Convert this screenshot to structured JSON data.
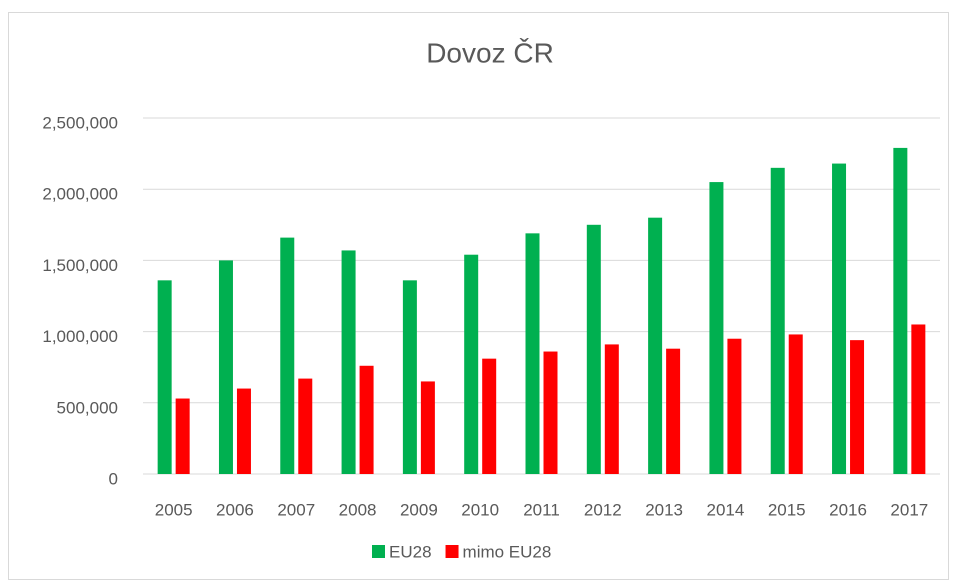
{
  "chart_data": {
    "type": "bar",
    "title": "Dovoz ČR",
    "categories": [
      "2005",
      "2006",
      "2007",
      "2008",
      "2009",
      "2010",
      "2011",
      "2012",
      "2013",
      "2014",
      "2015",
      "2016",
      "2017"
    ],
    "series": [
      {
        "name": "EU28",
        "color": "#00b050",
        "values": [
          1360000,
          1500000,
          1660000,
          1570000,
          1360000,
          1540000,
          1690000,
          1750000,
          1800000,
          2050000,
          2150000,
          2180000,
          2290000
        ]
      },
      {
        "name": "mimo EU28",
        "color": "#ff0000",
        "values": [
          530000,
          600000,
          670000,
          760000,
          650000,
          810000,
          860000,
          910000,
          880000,
          950000,
          980000,
          940000,
          1050000
        ]
      }
    ],
    "ylim": [
      0,
      2500000
    ],
    "yticks": [
      0,
      {
        "value": 500000,
        "label": "500,000"
      },
      {
        "value": 1000000,
        "label": "1,000,000"
      },
      {
        "value": 1500000,
        "label": "1,500,000"
      },
      {
        "value": 2000000,
        "label": "2,000,000"
      },
      {
        "value": 2500000,
        "label": "2,500,000"
      }
    ],
    "grid": true,
    "legend": "bottom"
  }
}
